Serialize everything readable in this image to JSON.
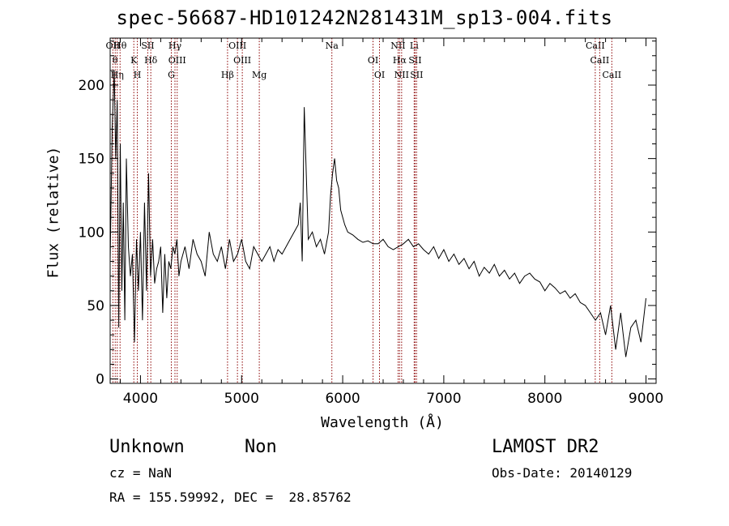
{
  "chart_data": {
    "type": "line",
    "title": "spec-56687-HD101242N281431M_sp13-004.fits",
    "xlabel": "Wavelength (Å)",
    "ylabel": "Flux (relative)",
    "xlim": [
      3700,
      9100
    ],
    "ylim": [
      -3,
      232
    ],
    "x_ticks": [
      4000,
      5000,
      6000,
      7000,
      8000,
      9000
    ],
    "x_tick_labels": [
      "4000",
      "5000",
      "6000",
      "7000",
      "8000",
      "9000"
    ],
    "y_ticks": [
      0,
      50,
      100,
      150,
      200
    ],
    "y_tick_labels": [
      "0",
      "50",
      "100",
      "150",
      "200"
    ],
    "grid": false,
    "series": [
      {
        "x": [
          3700,
          3720,
          3740,
          3755,
          3770,
          3785,
          3800,
          3815,
          3830,
          3845,
          3860,
          3880,
          3900,
          3920,
          3940,
          3960,
          3980,
          4000,
          4020,
          4040,
          4060,
          4080,
          4100,
          4120,
          4140,
          4160,
          4180,
          4200,
          4220,
          4240,
          4260,
          4280,
          4300,
          4320,
          4340,
          4360,
          4380,
          4400,
          4440,
          4480,
          4520,
          4560,
          4600,
          4640,
          4680,
          4720,
          4760,
          4800,
          4840,
          4880,
          4920,
          4960,
          5000,
          5040,
          5080,
          5120,
          5160,
          5200,
          5240,
          5280,
          5320,
          5360,
          5400,
          5440,
          5480,
          5520,
          5560,
          5580,
          5600,
          5620,
          5660,
          5700,
          5740,
          5780,
          5820,
          5860,
          5880,
          5900,
          5920,
          5940,
          5960,
          5980,
          6000,
          6020,
          6050,
          6100,
          6150,
          6200,
          6250,
          6300,
          6350,
          6400,
          6450,
          6500,
          6550,
          6600,
          6650,
          6700,
          6750,
          6800,
          6850,
          6900,
          6950,
          7000,
          7050,
          7100,
          7150,
          7200,
          7250,
          7300,
          7350,
          7400,
          7450,
          7500,
          7550,
          7600,
          7650,
          7700,
          7750,
          7800,
          7850,
          7900,
          7950,
          8000,
          8050,
          8100,
          8150,
          8200,
          8250,
          8300,
          8350,
          8400,
          8450,
          8500,
          8550,
          8600,
          8650,
          8700,
          8750,
          8800,
          8850,
          8900,
          8950,
          9000
        ],
        "y": [
          80,
          170,
          210,
          150,
          190,
          35,
          160,
          60,
          120,
          40,
          150,
          90,
          70,
          85,
          25,
          95,
          60,
          100,
          40,
          120,
          60,
          140,
          70,
          95,
          65,
          75,
          80,
          90,
          45,
          85,
          55,
          80,
          75,
          90,
          85,
          95,
          70,
          80,
          90,
          75,
          95,
          85,
          80,
          70,
          100,
          85,
          80,
          90,
          75,
          95,
          80,
          85,
          95,
          80,
          75,
          90,
          85,
          80,
          85,
          90,
          80,
          88,
          85,
          90,
          95,
          100,
          105,
          120,
          80,
          185,
          95,
          100,
          90,
          95,
          85,
          100,
          125,
          140,
          150,
          135,
          130,
          115,
          110,
          105,
          100,
          98,
          95,
          93,
          94,
          92,
          92,
          95,
          90,
          88,
          90,
          92,
          95,
          90,
          92,
          88,
          85,
          90,
          82,
          88,
          80,
          85,
          78,
          82,
          75,
          80,
          70,
          76,
          72,
          78,
          70,
          74,
          68,
          72,
          65,
          70,
          72,
          68,
          66,
          60,
          65,
          62,
          58,
          60,
          55,
          58,
          52,
          50,
          45,
          40,
          45,
          30,
          50,
          20,
          45,
          15,
          35,
          40,
          25,
          55
        ]
      }
    ],
    "vlines": [
      {
        "x": 3727,
        "label": "OII"
      },
      {
        "x": 3750,
        "label": "θ"
      },
      {
        "x": 3770,
        "label": "Hη"
      },
      {
        "x": 3798,
        "label": "Hθ"
      },
      {
        "x": 3934,
        "label": "K"
      },
      {
        "x": 3969,
        "label": "H"
      },
      {
        "x": 4072,
        "label": "SII"
      },
      {
        "x": 4102,
        "label": "Hδ"
      },
      {
        "x": 4305,
        "label": "G"
      },
      {
        "x": 4341,
        "label": "Hγ"
      },
      {
        "x": 4363,
        "label": "OIII"
      },
      {
        "x": 4861,
        "label": "Hβ"
      },
      {
        "x": 4959,
        "label": "OIII"
      },
      {
        "x": 5007,
        "label": "OIII"
      },
      {
        "x": 5175,
        "label": "Mg"
      },
      {
        "x": 5893,
        "label": "Na"
      },
      {
        "x": 6300,
        "label": "OI"
      },
      {
        "x": 6364,
        "label": "OI"
      },
      {
        "x": 6548,
        "label": "NII"
      },
      {
        "x": 6563,
        "label": "Hα"
      },
      {
        "x": 6583,
        "label": "NII"
      },
      {
        "x": 6707,
        "label": "Li"
      },
      {
        "x": 6716,
        "label": "SII"
      },
      {
        "x": 6731,
        "label": "SII"
      },
      {
        "x": 8498,
        "label": "CaII"
      },
      {
        "x": 8542,
        "label": "CaII"
      },
      {
        "x": 8662,
        "label": "CaII"
      }
    ]
  },
  "info": {
    "class_name": "Unknown",
    "subclass": "Non",
    "survey": "LAMOST DR2",
    "cz": "cz = NaN",
    "obs_date": "Obs-Date: 20140129",
    "radec": "RA = 155.59992, DEC =  28.85762"
  },
  "colors": {
    "spectrum": "#000000",
    "line_marker": "#8b0000",
    "background": "#ffffff"
  }
}
